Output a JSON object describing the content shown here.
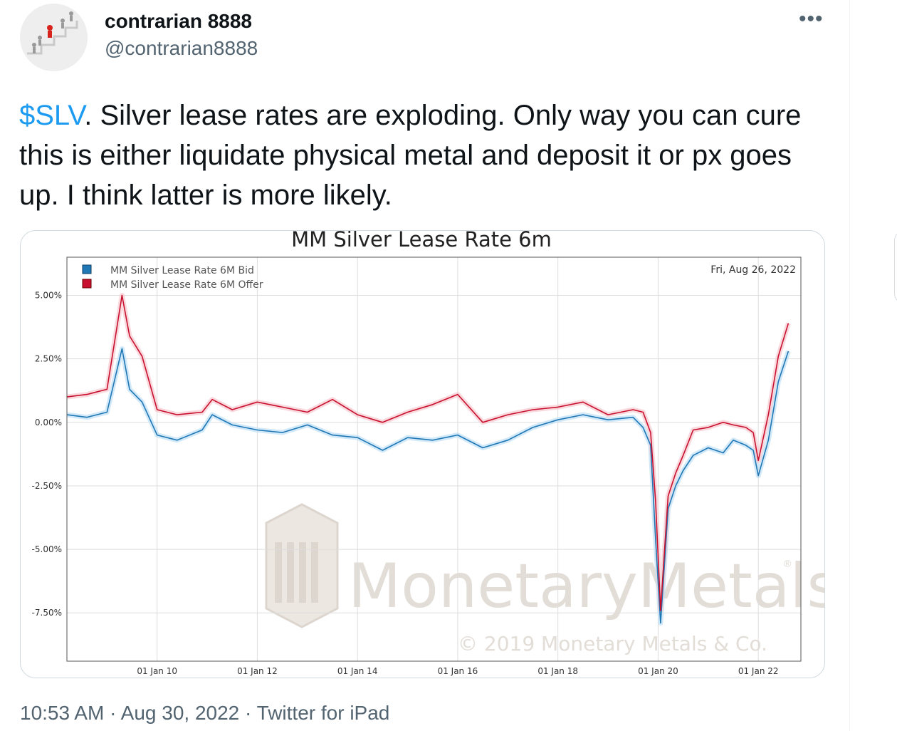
{
  "tweet": {
    "author_name": "contrarian 8888",
    "author_handle": "@contrarian8888",
    "more_icon": "more-dots-icon",
    "cashtag": "$SLV",
    "text_rest": ". Silver lease rates are exploding. Only way you can cure this is either liquidate physical metal and deposit it or px goes up.  I think latter is more likely.",
    "time": "10:53 AM",
    "separator": "·",
    "date": "Aug 30, 2022",
    "source": "Twitter for iPad"
  },
  "colors": {
    "link": "#1d9bf0",
    "bid": "#1f77b4",
    "offer": "#c8102e"
  },
  "chart_data": {
    "type": "line",
    "title": "MM Silver Lease Rate 6m",
    "date_label": "Fri, Aug 26, 2022",
    "watermark": "MonetaryMetals",
    "watermark_registered": "®",
    "copyright": "© 2019 Monetary Metals & Co.",
    "ylim": [
      -9.4,
      6.5
    ],
    "xlim": [
      2008.2,
      2022.85
    ],
    "y_ticks": [
      5.0,
      2.5,
      0.0,
      -2.5,
      -5.0,
      -7.5
    ],
    "y_tick_labels": [
      "5.00%",
      "2.50%",
      "0.00%",
      "-2.50%",
      "-5.00%",
      "-7.50%"
    ],
    "x_ticks": [
      2010,
      2012,
      2014,
      2016,
      2018,
      2020,
      2022
    ],
    "x_tick_labels": [
      "01 Jan 10",
      "01 Jan 12",
      "01 Jan 14",
      "01 Jan 16",
      "01 Jan 18",
      "01 Jan 20",
      "01 Jan 22"
    ],
    "grid": true,
    "legend_position": "top-left",
    "series": [
      {
        "name": "MM Silver Lease Rate 6M Bid",
        "x": [
          2008.2,
          2008.6,
          2009.0,
          2009.3,
          2009.45,
          2009.7,
          2010.0,
          2010.4,
          2010.9,
          2011.1,
          2011.5,
          2012.0,
          2012.5,
          2013.0,
          2013.5,
          2014.0,
          2014.5,
          2015.0,
          2015.5,
          2016.0,
          2016.5,
          2017.0,
          2017.5,
          2018.0,
          2018.5,
          2019.0,
          2019.5,
          2019.7,
          2019.85,
          2019.95,
          2020.05,
          2020.2,
          2020.35,
          2020.5,
          2020.7,
          2021.0,
          2021.3,
          2021.5,
          2021.75,
          2021.9,
          2022.0,
          2022.2,
          2022.4,
          2022.6
        ],
        "y": [
          0.3,
          0.2,
          0.4,
          2.9,
          1.3,
          0.8,
          -0.5,
          -0.7,
          -0.3,
          0.3,
          -0.1,
          -0.3,
          -0.4,
          -0.1,
          -0.5,
          -0.6,
          -1.1,
          -0.6,
          -0.7,
          -0.5,
          -1.0,
          -0.7,
          -0.2,
          0.1,
          0.3,
          0.1,
          0.2,
          -0.2,
          -0.9,
          -4.6,
          -7.9,
          -3.4,
          -2.5,
          -1.9,
          -1.3,
          -1.0,
          -1.2,
          -0.7,
          -0.9,
          -1.1,
          -2.1,
          -0.7,
          1.6,
          2.8
        ]
      },
      {
        "name": "MM Silver Lease Rate 6M Offer",
        "x": [
          2008.2,
          2008.6,
          2009.0,
          2009.3,
          2009.45,
          2009.7,
          2010.0,
          2010.4,
          2010.9,
          2011.1,
          2011.5,
          2012.0,
          2012.5,
          2013.0,
          2013.5,
          2014.0,
          2014.5,
          2015.0,
          2015.5,
          2016.0,
          2016.5,
          2017.0,
          2017.5,
          2018.0,
          2018.5,
          2019.0,
          2019.5,
          2019.7,
          2019.85,
          2019.95,
          2020.05,
          2020.2,
          2020.35,
          2020.5,
          2020.7,
          2021.0,
          2021.3,
          2021.5,
          2021.75,
          2021.9,
          2022.0,
          2022.2,
          2022.4,
          2022.6
        ],
        "y": [
          1.0,
          1.1,
          1.3,
          5.0,
          3.4,
          2.6,
          0.5,
          0.3,
          0.4,
          0.9,
          0.5,
          0.8,
          0.6,
          0.4,
          0.9,
          0.3,
          0.0,
          0.4,
          0.7,
          1.1,
          0.0,
          0.3,
          0.5,
          0.6,
          0.8,
          0.3,
          0.5,
          0.4,
          -0.4,
          -3.1,
          -7.4,
          -2.9,
          -2.0,
          -1.3,
          -0.3,
          -0.2,
          0.0,
          -0.1,
          -0.2,
          -0.4,
          -1.5,
          0.3,
          2.6,
          3.9
        ]
      }
    ]
  }
}
